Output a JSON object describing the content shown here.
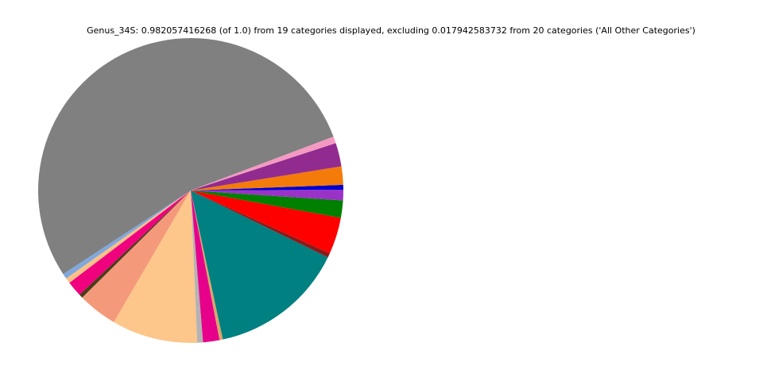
{
  "chart_data": {
    "type": "pie",
    "title": "Genus_34S: 0.982057416268 (of 1.0) from 19 categories displayed, excluding 0.017942583732 from 20 categories ('All Other Categories')",
    "values": [
      0.524,
      0.0055,
      0.0055,
      0.016,
      0.004,
      0.041,
      0.089,
      0.006,
      0.017,
      0.0035,
      0.141,
      0.0046,
      0.038,
      0.018,
      0.011,
      0.005,
      0.019,
      0.0245,
      0.007
    ],
    "colors": [
      "#808080",
      "#80a8dc",
      "#fdc086",
      "#f0027f",
      "#4d3b1a",
      "#f4997a",
      "#fdc68a",
      "#b3b3b3",
      "#e7008a",
      "#d9a66b",
      "#008080",
      "#8b1a1a",
      "#ff0000",
      "#008000",
      "#9a32c8",
      "#0000cd",
      "#f47a0a",
      "#922b8f",
      "#f49ac2"
    ]
  }
}
